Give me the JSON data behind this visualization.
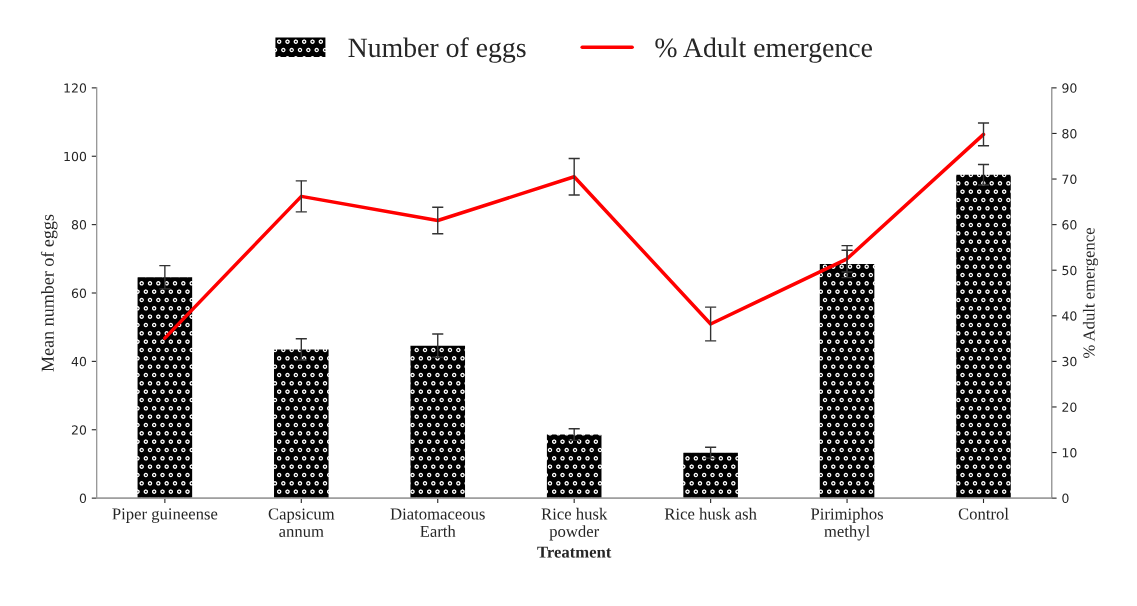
{
  "chart_data": {
    "type": "bar",
    "xlabel": "Treatment",
    "ylabel": "Mean number of eggs",
    "y2label": "% Adult emergence",
    "categories": [
      "Piper guineense",
      "Capsicum\nannum",
      "Diatomaceous\nEarth",
      "Rice husk\npowder",
      "Rice husk ash",
      "Pirimiphos\nmethyl",
      "Control"
    ],
    "series": [
      {
        "name": "Number of eggs",
        "color": "#000000",
        "values": [
          64.6,
          43.5,
          44.6,
          18.6,
          13.3,
          68.5,
          94.6
        ],
        "errors": [
          3.4,
          3.1,
          3.4,
          1.7,
          1.6,
          4,
          3
        ]
      },
      {
        "name": "% Adult emergence",
        "type": "line",
        "axis": "y2",
        "color": "#ff0000",
        "values": [
          35.1,
          66.2,
          60.9,
          70.5,
          38.2,
          52.5,
          79.8
        ],
        "errors": [
          null,
          3.4,
          2.9,
          4,
          3.7,
          2.9,
          2.5
        ]
      }
    ],
    "ylim": [
      0,
      120
    ],
    "yticks": [
      0,
      20,
      40,
      60,
      80,
      100,
      120
    ],
    "y2lim": [
      0,
      90
    ],
    "y2ticks": [
      0,
      10,
      20,
      30,
      40,
      50,
      60,
      70,
      80,
      90
    ],
    "legend": "top",
    "grid": false,
    "marker": "none",
    "line_style": "solid"
  }
}
